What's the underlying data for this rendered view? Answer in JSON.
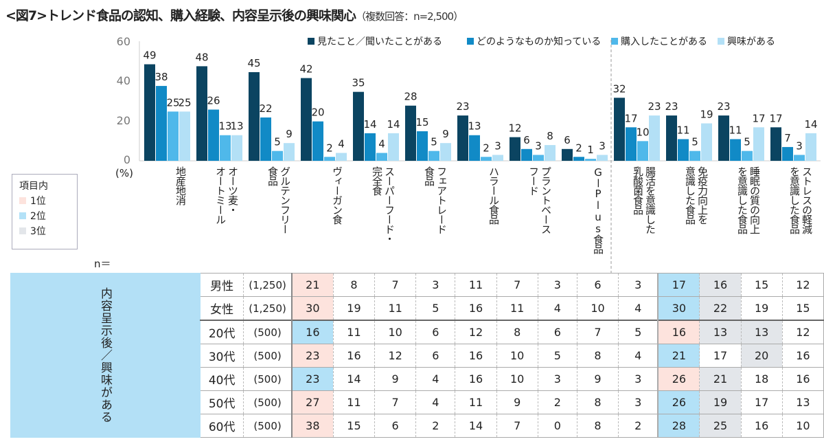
{
  "title": "<図7>トレンド食品の認知、購入経験、内容呈示後の興味関心",
  "subtitle": "（複数回答：n=2,500）",
  "colors": {
    "rank1": "#fde3dd",
    "rank2": "#b3e1f7",
    "rank3": "#e3e6ea"
  },
  "rank_legend": {
    "title": "項目内",
    "items": [
      "1位",
      "2位",
      "3位"
    ]
  },
  "chart_data": {
    "type": "bar",
    "ylabel": "(%)",
    "ylim": [
      0,
      60
    ],
    "yticks": [
      0,
      20,
      40,
      60
    ],
    "grid": false,
    "legend": "top-right",
    "categories": [
      "地産地消",
      "オーツ麦・\nオートミール",
      "グルテンフリー\n食品",
      "ヴィーガン食",
      "スーパーフード・\n完全食",
      "フェアトレード\n食品",
      "ハラール食品",
      "プラントベース\nフード",
      "GーPlus食品",
      "腸活を意識した\n乳酸菌食品",
      "免疫力向上を\n意識した食品",
      "睡眠の質の向上\nを意識した食品",
      "ストレスの軽減\nを意識した食品"
    ],
    "series": [
      {
        "name": "見たこと／聞いたことがある",
        "color": "#0b4461",
        "values": [
          49,
          48,
          45,
          42,
          35,
          28,
          23,
          12,
          6,
          32,
          23,
          23,
          17
        ]
      },
      {
        "name": "どのようなものか知っている",
        "color": "#118ac6",
        "values": [
          38,
          26,
          22,
          20,
          14,
          15,
          13,
          6,
          2,
          17,
          11,
          11,
          7
        ]
      },
      {
        "name": "購入したことがある",
        "color": "#4fb8ea",
        "values": [
          25,
          13,
          5,
          2,
          4,
          5,
          2,
          3,
          1,
          10,
          5,
          5,
          3
        ]
      },
      {
        "name": "興味がある",
        "color": "#b3e0f6",
        "values": [
          25,
          13,
          9,
          4,
          14,
          9,
          3,
          8,
          3,
          23,
          19,
          17,
          14
        ]
      }
    ]
  },
  "table": {
    "side_label": "内容呈示後／興味がある",
    "n_label": "n＝",
    "rows": [
      {
        "label": "男性",
        "n": "(1,250)",
        "values": [
          21,
          8,
          7,
          3,
          11,
          7,
          3,
          6,
          3,
          17,
          16,
          15,
          12
        ],
        "ranks": [
          1,
          0,
          0,
          0,
          0,
          0,
          0,
          0,
          0,
          2,
          3,
          0,
          0
        ]
      },
      {
        "label": "女性",
        "n": "(1,250)",
        "values": [
          30,
          19,
          11,
          5,
          16,
          11,
          4,
          10,
          4,
          30,
          22,
          19,
          15
        ],
        "ranks": [
          1,
          0,
          0,
          0,
          0,
          0,
          0,
          0,
          0,
          2,
          3,
          0,
          0
        ]
      },
      {
        "label": "20代",
        "n": "(500)",
        "values": [
          16,
          11,
          10,
          6,
          12,
          8,
          6,
          7,
          5,
          16,
          13,
          13,
          12
        ],
        "ranks": [
          2,
          0,
          0,
          0,
          0,
          0,
          0,
          0,
          0,
          1,
          3,
          3,
          0
        ]
      },
      {
        "label": "30代",
        "n": "(500)",
        "values": [
          23,
          16,
          12,
          6,
          16,
          10,
          5,
          8,
          4,
          21,
          17,
          20,
          16
        ],
        "ranks": [
          1,
          0,
          0,
          0,
          0,
          0,
          0,
          0,
          0,
          2,
          0,
          3,
          0
        ]
      },
      {
        "label": "40代",
        "n": "(500)",
        "values": [
          23,
          14,
          9,
          4,
          16,
          10,
          3,
          9,
          3,
          26,
          21,
          18,
          16
        ],
        "ranks": [
          2,
          0,
          0,
          0,
          0,
          0,
          0,
          0,
          0,
          1,
          3,
          0,
          0
        ]
      },
      {
        "label": "50代",
        "n": "(500)",
        "values": [
          27,
          11,
          7,
          4,
          11,
          9,
          2,
          8,
          3,
          26,
          19,
          17,
          13
        ],
        "ranks": [
          1,
          0,
          0,
          0,
          0,
          0,
          0,
          0,
          0,
          2,
          3,
          0,
          0
        ]
      },
      {
        "label": "60代",
        "n": "(500)",
        "values": [
          38,
          15,
          6,
          2,
          14,
          7,
          0,
          8,
          2,
          28,
          25,
          16,
          10
        ],
        "ranks": [
          1,
          0,
          0,
          0,
          0,
          0,
          0,
          0,
          0,
          2,
          3,
          0,
          0
        ]
      }
    ]
  }
}
